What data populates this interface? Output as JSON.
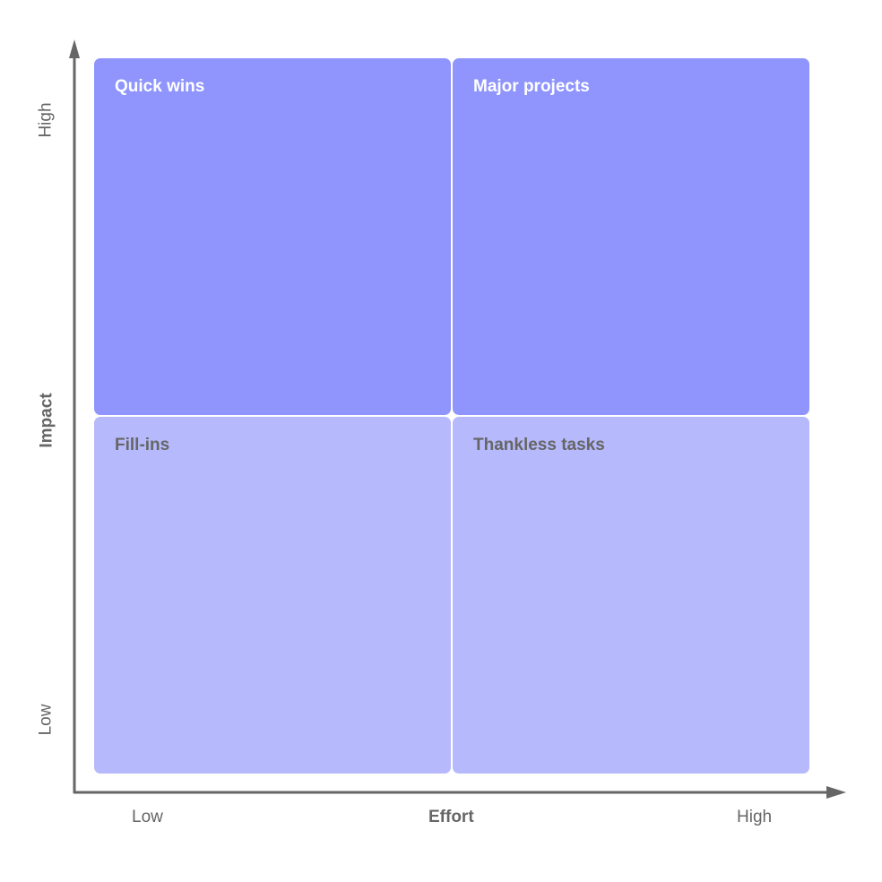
{
  "quadrants": {
    "top_left": "Quick wins",
    "top_right": "Major projects",
    "bottom_left": "Fill-ins",
    "bottom_right": "Thankless tasks"
  },
  "x_axis": {
    "title": "Effort",
    "low": "Low",
    "high": "High"
  },
  "y_axis": {
    "title": "Impact",
    "low": "Low",
    "high": "High"
  },
  "colors": {
    "high_impact": "#8f95fd",
    "low_impact": "#b6b9fb",
    "axis": "#666666"
  }
}
